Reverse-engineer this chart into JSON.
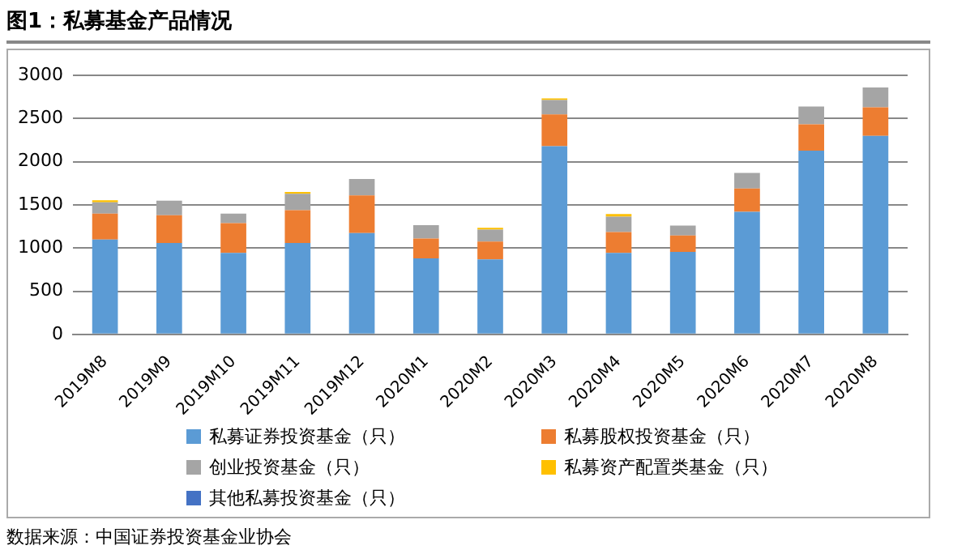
{
  "chart_data": {
    "type": "bar",
    "title": "图1：私募基金产品情况",
    "stacked": true,
    "legend": "bottom",
    "grid": "y",
    "categories": [
      "2019M8",
      "2019M9",
      "2019M10",
      "2019M11",
      "2019M12",
      "2020M1",
      "2020M2",
      "2020M3",
      "2020M4",
      "2020M5",
      "2020M6",
      "2020M7",
      "2020M8"
    ],
    "ylim": [
      0,
      3000
    ],
    "yticks": [
      0,
      500,
      1000,
      1500,
      2000,
      2500,
      3000
    ],
    "series": [
      {
        "name": "私募证券投资基金（只）",
        "color": "#5b9bd5",
        "values": [
          1100,
          1060,
          945,
          1060,
          1175,
          880,
          870,
          2180,
          945,
          955,
          1420,
          2130,
          2300
        ]
      },
      {
        "name": "私募股权投资基金（只）",
        "color": "#ed7d31",
        "values": [
          300,
          320,
          345,
          380,
          435,
          230,
          205,
          370,
          240,
          190,
          270,
          305,
          330
        ]
      },
      {
        "name": "创业投资基金（只）",
        "color": "#a5a5a5",
        "values": [
          130,
          170,
          110,
          190,
          190,
          155,
          140,
          165,
          180,
          115,
          180,
          205,
          230
        ]
      },
      {
        "name": "私募资产配置类基金（只）",
        "color": "#ffc000",
        "values": [
          25,
          0,
          0,
          20,
          0,
          0,
          20,
          20,
          30,
          0,
          0,
          0,
          0
        ]
      },
      {
        "name": "其他私募投资基金（只）",
        "color": "#4472c4",
        "values": [
          0,
          0,
          0,
          0,
          0,
          0,
          0,
          0,
          0,
          0,
          0,
          0,
          0
        ]
      }
    ],
    "annotations": [
      "数据来源：中国证券投资基金业协会"
    ]
  }
}
